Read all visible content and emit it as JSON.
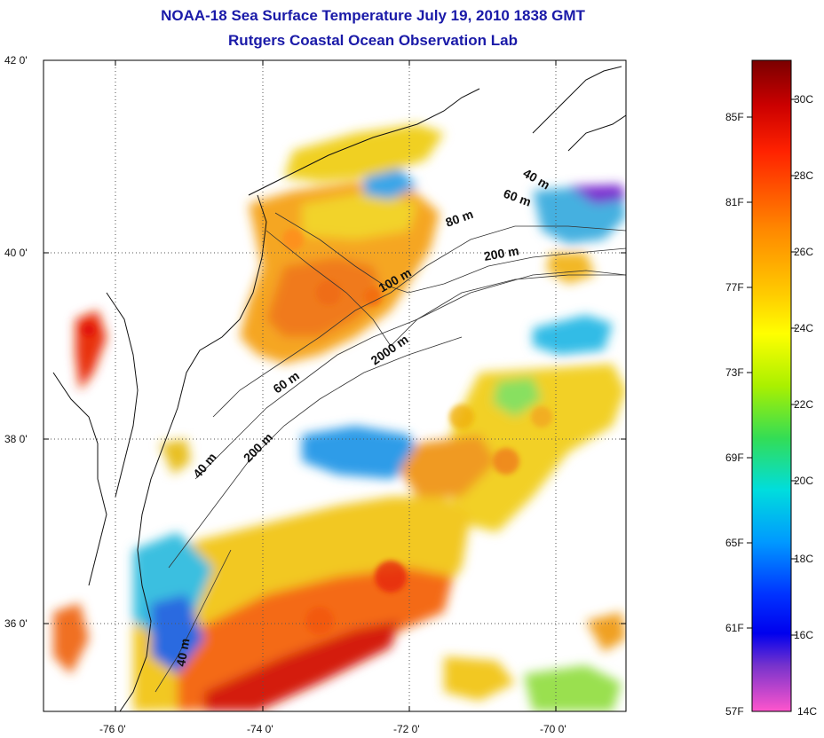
{
  "title_line1": "NOAA-18 Sea Surface Temperature July 19, 2010 1838 GMT",
  "title_line2": "Rutgers Coastal Ocean Observation Lab",
  "lat_labels": [
    "42 0'",
    "40 0'",
    "38 0'",
    "36 0'"
  ],
  "lon_labels": [
    "-76 0'",
    "-74 0'",
    "-72 0'",
    "-70 0'"
  ],
  "contour_labels": [
    "40 m",
    "60 m",
    "80 m",
    "200 m",
    "100 m",
    "2000 m",
    "60 m",
    "200 m",
    "40 m",
    "40 m"
  ],
  "colorbar": {
    "fahrenheit": [
      "85F",
      "81F",
      "77F",
      "73F",
      "69F",
      "65F",
      "61F",
      "57F"
    ],
    "celsius": [
      "30C",
      "28C",
      "26C",
      "24C",
      "22C",
      "20C",
      "18C",
      "16C",
      "14C"
    ],
    "gradient_stops": [
      "#7a0000",
      "#cc0000",
      "#ff3300",
      "#ff8800",
      "#ffcc00",
      "#ffff00",
      "#aaf000",
      "#33dd55",
      "#00dddd",
      "#0099ff",
      "#0033ff",
      "#0000ee",
      "#6a33cc",
      "#cc33cc",
      "#ff55cc"
    ]
  }
}
